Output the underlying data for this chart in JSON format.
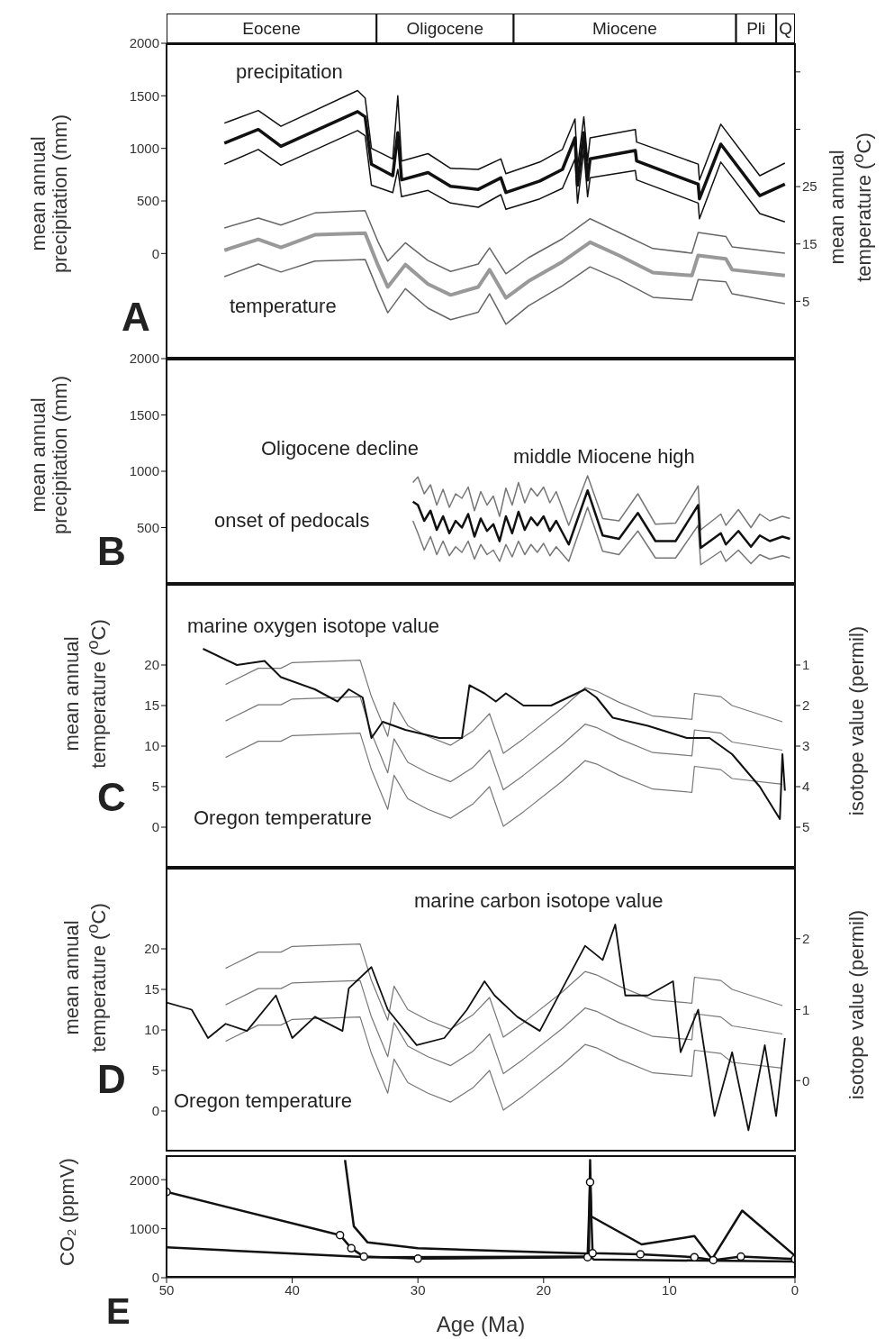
{
  "chart_data": [
    {
      "type": "bar",
      "orientation": "horizontal",
      "stacked": true,
      "categories": [
        null
      ],
      "xlim": [
        50,
        0
      ],
      "tick_labels": false,
      "series": [
        {
          "name": "Q",
          "color": "#ffffff",
          "values": [
            1.5
          ]
        },
        {
          "name": "Pli",
          "color": "#ffffff",
          "values": [
            3.2
          ]
        },
        {
          "name": "Miocene",
          "color": "#ffffff",
          "values": [
            17.7
          ]
        },
        {
          "name": "Oligocene",
          "color": "#ffffff",
          "values": [
            10.9
          ]
        },
        {
          "name": "Eocene",
          "color": "#ffffff",
          "values": [
            16.7
          ]
        }
      ]
    },
    {
      "type": "line",
      "xlim": [
        50,
        0
      ],
      "ylim": [
        -1000,
        2000
      ],
      "yticks": [
        0,
        500,
        1000,
        1500,
        2000
      ],
      "y2lim": [
        -5,
        50
      ],
      "y2ticks": [
        5,
        15,
        25,
        {
          "value": 35,
          "label": null
        },
        {
          "value": 45,
          "label": null
        }
      ],
      "tick_labels": "y",
      "ylabel": "mean annual precipitation (mm)",
      "y2label": "mean annual temperature ($^{o}$C)",
      "annotations": [
        "precipitation",
        "temperature",
        "A"
      ],
      "series": [
        {
          "color": "#111111",
          "x": [
            45.4,
            42.7,
            40.9,
            34.8,
            34.2,
            33.7,
            32.0,
            31.6,
            31.3,
            29.2,
            27.4,
            25.2,
            23.4,
            23.0,
            20.3,
            18.5,
            17.5,
            17.3,
            16.8,
            16.5,
            16.3,
            12.7,
            12.6,
            7.7,
            7.6,
            5.9,
            2.8,
            0.8
          ],
          "values": [
            1050,
            1180,
            1020,
            1350,
            1300,
            850,
            740,
            1150,
            700,
            770,
            640,
            610,
            720,
            580,
            690,
            800,
            1100,
            650,
            1150,
            700,
            900,
            980,
            880,
            660,
            520,
            1040,
            550,
            660
          ]
        },
        {
          "color": "#111111",
          "x": [
            45.4,
            42.7,
            40.9,
            34.8,
            34.2,
            33.7,
            32.0,
            31.6,
            31.3,
            29.2,
            27.4,
            25.2,
            23.4,
            23.0,
            20.3,
            18.5,
            17.5,
            17.3,
            16.8,
            16.5,
            16.3,
            12.7,
            12.6,
            7.7,
            7.6,
            5.9,
            2.8,
            0.8
          ],
          "values": [
            1240,
            1360,
            1210,
            1550,
            1480,
            1000,
            900,
            1500,
            880,
            950,
            810,
            800,
            900,
            760,
            870,
            990,
            1280,
            820,
            1300,
            880,
            1100,
            1180,
            1060,
            850,
            700,
            1230,
            740,
            860
          ]
        },
        {
          "color": "#111111",
          "x": [
            45.4,
            42.7,
            40.9,
            34.8,
            34.2,
            33.7,
            32.0,
            31.6,
            31.3,
            29.2,
            27.4,
            25.2,
            23.4,
            23.0,
            20.3,
            18.5,
            17.5,
            17.3,
            16.8,
            16.5,
            16.3,
            12.7,
            12.6,
            7.7,
            7.6,
            5.9,
            2.8,
            0.8
          ],
          "values": [
            850,
            990,
            840,
            1170,
            1120,
            650,
            580,
            800,
            540,
            600,
            480,
            440,
            560,
            420,
            520,
            620,
            900,
            480,
            980,
            540,
            720,
            790,
            700,
            480,
            330,
            870,
            380,
            300
          ]
        },
        {
          "color": "#999999",
          "axis": "y2",
          "x": [
            45.4,
            42.7,
            40.9,
            38.2,
            34.2,
            33.2,
            32.4,
            31.0,
            29.2,
            27.4,
            25.2,
            24.3,
            23.0,
            21.2,
            18.5,
            16.3,
            14.0,
            11.3,
            8.2,
            7.7,
            5.5,
            5.0,
            0.8
          ],
          "values": [
            13.9,
            15.8,
            14.4,
            16.6,
            16.9,
            11.4,
            7.5,
            11.4,
            8.0,
            6.1,
            7.5,
            10.5,
            5.6,
            8.5,
            11.9,
            15.3,
            13.0,
            10.0,
            9.5,
            13.0,
            12.4,
            10.5,
            9.5
          ]
        },
        {
          "color": "#666666",
          "axis": "y2",
          "x": [
            45.4,
            42.7,
            40.9,
            38.2,
            34.2,
            33.2,
            32.4,
            31.0,
            29.2,
            27.4,
            25.2,
            24.3,
            23.0,
            21.2,
            18.5,
            16.3,
            14.0,
            11.3,
            8.2,
            7.7,
            5.5,
            5.0,
            0.8
          ],
          "values": [
            17.8,
            19.5,
            18.3,
            20.4,
            20.8,
            15.5,
            12.0,
            15.2,
            12.1,
            10.2,
            11.5,
            14.3,
            9.8,
            12.6,
            15.9,
            19.4,
            17.0,
            14.2,
            13.4,
            17.0,
            16.3,
            14.5,
            13.4
          ]
        },
        {
          "color": "#666666",
          "axis": "y2",
          "x": [
            45.4,
            42.7,
            40.9,
            38.2,
            34.2,
            33.2,
            32.4,
            31.0,
            29.2,
            27.4,
            25.2,
            24.3,
            23.0,
            21.2,
            18.5,
            16.3,
            14.0,
            11.3,
            8.2,
            7.7,
            5.5,
            5.0,
            0.8
          ],
          "values": [
            9.3,
            11.5,
            10.1,
            12.0,
            12.3,
            7.0,
            3.0,
            7.2,
            3.8,
            1.8,
            3.1,
            6.3,
            1.0,
            4.2,
            7.7,
            11.0,
            8.8,
            5.7,
            5.2,
            8.8,
            8.4,
            6.3,
            4.6
          ]
        }
      ]
    },
    {
      "type": "line",
      "xlim": [
        50,
        0
      ],
      "ylim": [
        0,
        2000
      ],
      "yticks": [
        500,
        1000,
        1500,
        2000
      ],
      "tick_labels": "y",
      "ylabel": "mean annual precipitation (mm)",
      "annotations": [
        "Oligocene decline",
        "middle Miocene high",
        "onset of pedocals",
        "B"
      ],
      "x": [
        30.4,
        30.0,
        29.5,
        29.0,
        28.5,
        28.0,
        27.5,
        27.0,
        26.5,
        26.0,
        25.5,
        25.0,
        24.5,
        24.0,
        23.5,
        23.0,
        22.5,
        22.0,
        21.5,
        21.0,
        20.5,
        20.0,
        19.5,
        19.0,
        18.0,
        16.5,
        15.3,
        14.0,
        12.5,
        11.1,
        9.5,
        7.7,
        7.5,
        5.9,
        5.5,
        4.5,
        3.5,
        2.8,
        2.0,
        1.0,
        0.4
      ],
      "series": [
        {
          "color": "#777777",
          "values": [
            900,
            950,
            800,
            880,
            700,
            840,
            680,
            800,
            760,
            860,
            650,
            820,
            700,
            780,
            600,
            850,
            700,
            900,
            720,
            850,
            780,
            860,
            720,
            820,
            520,
            960,
            580,
            560,
            800,
            530,
            540,
            870,
            480,
            620,
            520,
            660,
            500,
            620,
            560,
            600,
            580
          ]
        },
        {
          "color": "#777777",
          "values": [
            560,
            450,
            300,
            420,
            260,
            380,
            250,
            330,
            280,
            380,
            220,
            350,
            260,
            300,
            200,
            350,
            240,
            380,
            260,
            350,
            280,
            360,
            250,
            330,
            200,
            680,
            290,
            260,
            470,
            230,
            230,
            520,
            170,
            290,
            200,
            300,
            180,
            260,
            220,
            250,
            230
          ]
        },
        {
          "color": "#111111",
          "values": [
            730,
            700,
            560,
            650,
            480,
            600,
            450,
            560,
            500,
            620,
            420,
            580,
            470,
            530,
            380,
            600,
            450,
            640,
            480,
            590,
            520,
            600,
            470,
            560,
            350,
            830,
            430,
            400,
            630,
            380,
            380,
            700,
            320,
            450,
            350,
            470,
            330,
            430,
            380,
            420,
            400
          ]
        }
      ]
    },
    {
      "type": "line",
      "xlim": [
        50,
        0
      ],
      "ylim": [
        -5,
        30
      ],
      "yticks": [
        0,
        5,
        10,
        15,
        20
      ],
      "y2lim": [
        6,
        -1
      ],
      "y2ticks": [
        1,
        2,
        3,
        4,
        5
      ],
      "tick_labels": "y",
      "ylabel": "mean annual temperature ($^{o}$C)",
      "y2label": "isotope value (permil)",
      "annotations": [
        "marine oxygen isotope value",
        "Oregon temperature",
        "C"
      ],
      "series": [
        {
          "color": "#777777",
          "x": [
            45.3,
            42.7,
            40.9,
            40.0,
            34.6,
            33.7,
            32.4,
            31.9,
            30.8,
            29.2,
            27.4,
            25.6,
            24.3,
            23.2,
            21.6,
            18.5,
            16.7,
            15.8,
            14.0,
            11.3,
            8.2,
            8.0,
            5.9,
            5.0,
            1.0
          ],
          "values": [
            17.6,
            19.6,
            19.6,
            20.3,
            20.6,
            16.1,
            11.2,
            15.4,
            12.5,
            11.2,
            10.1,
            11.9,
            14.0,
            9.1,
            10.9,
            14.7,
            17.2,
            16.8,
            15.4,
            13.7,
            13.3,
            16.5,
            16.1,
            15.0,
            13.0
          ]
        },
        {
          "color": "#777777",
          "x": [
            45.3,
            42.7,
            40.9,
            40.0,
            34.6,
            33.7,
            32.4,
            31.9,
            30.8,
            29.2,
            27.4,
            25.6,
            24.3,
            23.2,
            21.6,
            18.5,
            16.7,
            15.8,
            14.0,
            11.3,
            8.2,
            8.0,
            5.9,
            5.0,
            1.0
          ],
          "values": [
            13.1,
            15.1,
            15.1,
            15.8,
            16.1,
            11.6,
            6.7,
            10.9,
            8.0,
            6.7,
            5.6,
            7.4,
            9.5,
            4.6,
            6.4,
            10.2,
            12.7,
            12.3,
            10.9,
            9.2,
            8.8,
            12.0,
            11.6,
            10.5,
            9.5
          ]
        },
        {
          "color": "#777777",
          "x": [
            45.3,
            42.7,
            40.9,
            40.0,
            34.6,
            33.7,
            32.4,
            31.9,
            30.8,
            29.2,
            27.4,
            25.6,
            24.3,
            23.2,
            21.6,
            18.5,
            16.7,
            15.8,
            14.0,
            11.3,
            8.2,
            8.0,
            5.9,
            5.0,
            1.0
          ],
          "values": [
            8.6,
            10.6,
            10.6,
            11.3,
            11.6,
            7.1,
            2.2,
            6.4,
            3.5,
            2.2,
            1.1,
            2.9,
            5.0,
            0.1,
            1.9,
            5.7,
            8.2,
            7.8,
            6.4,
            4.7,
            4.3,
            7.5,
            7.1,
            6.0,
            5.3
          ]
        },
        {
          "color": "#111111",
          "axis": "y2",
          "x": [
            47.1,
            44.4,
            42.2,
            40.9,
            38.2,
            36.4,
            35.5,
            34.4,
            33.7,
            32.8,
            31.0,
            28.3,
            26.5,
            25.9,
            24.7,
            23.8,
            23.0,
            21.6,
            19.4,
            16.7,
            15.8,
            14.5,
            11.7,
            8.6,
            6.8,
            5.0,
            2.8,
            1.2,
            1.0,
            0.8
          ],
          "values": [
            0.6,
            1.0,
            0.9,
            1.3,
            1.6,
            1.9,
            1.6,
            1.8,
            2.8,
            2.4,
            2.6,
            2.8,
            2.8,
            1.5,
            1.7,
            1.9,
            1.7,
            2.0,
            2.0,
            1.6,
            1.8,
            2.3,
            2.5,
            2.8,
            2.8,
            3.2,
            4.0,
            4.8,
            3.2,
            4.1
          ]
        }
      ]
    },
    {
      "type": "line",
      "xlim": [
        50,
        0
      ],
      "ylim": [
        -5,
        30
      ],
      "yticks": [
        0,
        5,
        10,
        15,
        20
      ],
      "y2lim": [
        -1,
        3
      ],
      "y2ticks": [
        0,
        1,
        2
      ],
      "tick_labels": "y",
      "ylabel": "mean annual temperature ($^{o}$C)",
      "y2label": "isotope value (permil)",
      "annotations": [
        "marine carbon isotope value",
        "Oregon temperature",
        "D"
      ],
      "series": [
        {
          "color": "#777777",
          "x": [
            45.3,
            42.7,
            40.9,
            40.0,
            34.6,
            33.7,
            32.4,
            31.9,
            30.8,
            29.2,
            27.4,
            25.6,
            24.3,
            23.2,
            21.6,
            18.5,
            16.7,
            15.8,
            14.0,
            11.3,
            8.2,
            8.0,
            5.9,
            5.0,
            1.0
          ],
          "values": [
            17.6,
            19.6,
            19.6,
            20.3,
            20.6,
            16.1,
            11.2,
            15.4,
            12.5,
            11.2,
            10.1,
            11.9,
            14.0,
            9.1,
            10.9,
            14.7,
            17.2,
            16.8,
            15.4,
            13.7,
            13.3,
            16.5,
            16.1,
            15.0,
            13.0
          ]
        },
        {
          "color": "#777777",
          "x": [
            45.3,
            42.7,
            40.9,
            40.0,
            34.6,
            33.7,
            32.4,
            31.9,
            30.8,
            29.2,
            27.4,
            25.6,
            24.3,
            23.2,
            21.6,
            18.5,
            16.7,
            15.8,
            14.0,
            11.3,
            8.2,
            8.0,
            5.9,
            5.0,
            1.0
          ],
          "values": [
            13.1,
            15.1,
            15.1,
            15.8,
            16.1,
            11.6,
            6.7,
            10.9,
            8.0,
            6.7,
            5.6,
            7.4,
            9.5,
            4.6,
            6.4,
            10.2,
            12.7,
            12.3,
            10.9,
            9.2,
            8.8,
            12.0,
            11.6,
            10.5,
            9.5
          ]
        },
        {
          "color": "#777777",
          "x": [
            45.3,
            42.7,
            40.9,
            40.0,
            34.6,
            33.7,
            32.4,
            31.9,
            30.8,
            29.2,
            27.4,
            25.6,
            24.3,
            23.2,
            21.6,
            18.5,
            16.7,
            15.8,
            14.0,
            11.3,
            8.2,
            8.0,
            5.9,
            5.0,
            1.0
          ],
          "values": [
            8.6,
            10.6,
            10.6,
            11.3,
            11.6,
            7.1,
            2.2,
            6.4,
            3.5,
            2.2,
            1.1,
            2.9,
            5.0,
            0.1,
            1.9,
            5.7,
            8.2,
            7.8,
            6.4,
            4.7,
            4.3,
            7.5,
            7.1,
            6.0,
            5.3
          ]
        },
        {
          "color": "#111111",
          "axis": "y2",
          "x": [
            50,
            48.0,
            46.7,
            45.3,
            43.6,
            41.3,
            40.0,
            38.2,
            36.0,
            35.5,
            33.7,
            32.4,
            30.1,
            27.9,
            26.1,
            24.7,
            23.9,
            22.1,
            20.3,
            18.5,
            16.7,
            15.3,
            14.3,
            13.5,
            11.7,
            9.7,
            9.1,
            7.7,
            6.4,
            5.0,
            3.7,
            2.4,
            1.5,
            0.8
          ],
          "values": [
            1.1,
            1.0,
            0.6,
            0.8,
            0.7,
            1.2,
            0.6,
            0.9,
            0.7,
            1.3,
            1.6,
            1.0,
            0.5,
            0.6,
            1.0,
            1.4,
            1.2,
            0.9,
            0.7,
            1.3,
            1.9,
            1.7,
            2.2,
            1.2,
            1.2,
            1.4,
            0.4,
            1.0,
            -0.5,
            0.4,
            -0.7,
            0.5,
            -0.5,
            0.6
          ]
        }
      ]
    },
    {
      "type": "line",
      "xlim": [
        50,
        0
      ],
      "xticks": [
        50,
        40,
        30,
        20,
        10,
        0
      ],
      "ylim": [
        0,
        2500
      ],
      "yticks": [
        0,
        1000,
        2000
      ],
      "xlabel": "Age (Ma)",
      "ylabel": "CO₂ (ppmV)",
      "annotations": [
        "E"
      ],
      "series": [
        {
          "color": "#111111",
          "marker": "circle",
          "x": [
            50,
            36.2,
            35.3,
            34.3,
            30,
            16.5,
            16.3,
            16.1,
            12.3,
            8,
            6.5,
            4.3,
            0
          ],
          "values": [
            1750,
            870,
            600,
            430,
            390,
            420,
            1950,
            500,
            480,
            420,
            360,
            430,
            380
          ]
        },
        {
          "color": "#111111",
          "x": [
            35.8,
            35.1,
            34,
            30,
            16.4,
            16.3,
            16.2,
            12.2,
            8,
            6.6,
            4.2,
            0
          ],
          "values": [
            2400,
            1050,
            720,
            600,
            490,
            2400,
            1250,
            680,
            850,
            380,
            1370,
            450
          ]
        },
        {
          "color": "#111111",
          "x": [
            50,
            34,
            16.3,
            16,
            0
          ],
          "values": [
            620,
            420,
            430,
            370,
            330
          ]
        }
      ]
    }
  ]
}
